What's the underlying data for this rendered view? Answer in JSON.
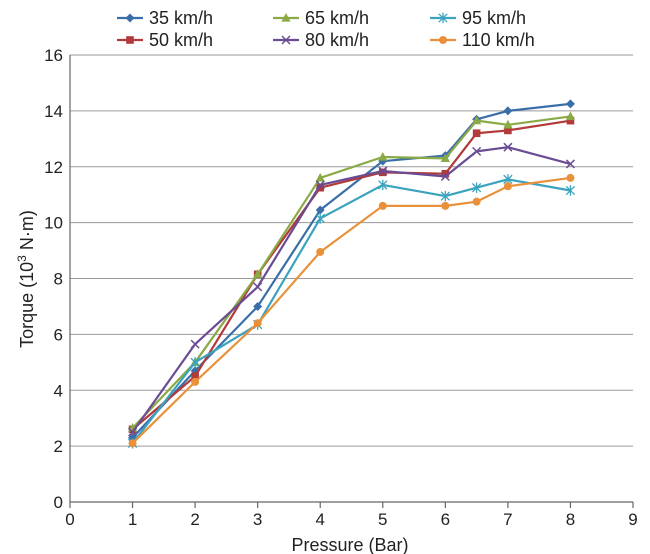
{
  "chart_data": {
    "type": "line",
    "title": "",
    "xlabel": "Pressure (Bar)",
    "ylabel_main": "Torque (10",
    "ylabel_sup": "3",
    "ylabel_unit": " N·m)",
    "xlim": [
      0,
      9
    ],
    "ylim": [
      0,
      16
    ],
    "xticks": [
      "0",
      "1",
      "2",
      "3",
      "4",
      "5",
      "6",
      "7",
      "8",
      "9"
    ],
    "yticks": [
      "0",
      "2",
      "4",
      "6",
      "8",
      "10",
      "12",
      "14",
      "16"
    ],
    "grid": "horizontal",
    "legend_position": "top",
    "x": [
      1,
      2,
      3,
      4,
      5,
      6,
      6.5,
      7,
      8
    ],
    "series": [
      {
        "name": "35 km/h",
        "color": "#3a6ea8",
        "marker": "diamond",
        "values": [
          2.3,
          4.7,
          7.0,
          10.45,
          12.2,
          12.4,
          13.7,
          14.0,
          14.25
        ]
      },
      {
        "name": "50 km/h",
        "color": "#b23a3a",
        "marker": "square",
        "values": [
          2.6,
          4.5,
          8.15,
          11.25,
          11.8,
          11.75,
          13.2,
          13.3,
          13.65
        ]
      },
      {
        "name": "65 km/h",
        "color": "#8aaa45",
        "marker": "triangle",
        "values": [
          2.65,
          5.0,
          8.15,
          11.6,
          12.35,
          12.3,
          13.65,
          13.5,
          13.8
        ]
      },
      {
        "name": "80 km/h",
        "color": "#6a4c93",
        "marker": "x",
        "values": [
          2.5,
          5.65,
          7.7,
          11.35,
          11.85,
          11.65,
          12.55,
          12.7,
          12.1
        ]
      },
      {
        "name": "95 km/h",
        "color": "#3ba3bd",
        "marker": "star",
        "values": [
          2.1,
          5.0,
          6.35,
          10.15,
          11.35,
          10.95,
          11.25,
          11.55,
          11.15
        ]
      },
      {
        "name": "110 km/h",
        "color": "#e8913a",
        "marker": "circle",
        "values": [
          2.1,
          4.3,
          6.4,
          8.95,
          10.6,
          10.6,
          10.75,
          11.3,
          11.6
        ]
      }
    ]
  }
}
